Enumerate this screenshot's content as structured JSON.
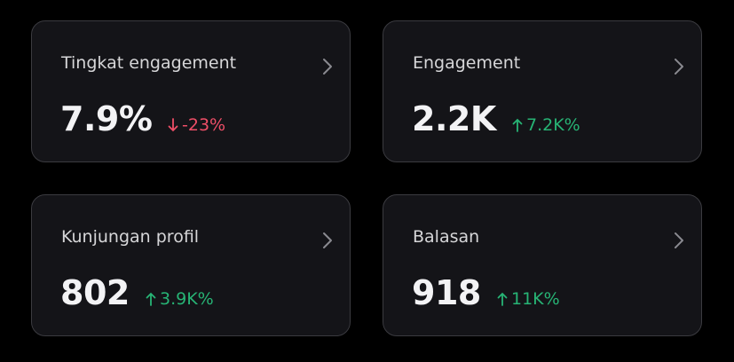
{
  "cards": [
    {
      "label": "Tingkat engagement",
      "value": "7.9%",
      "change": "-23%",
      "direction": "down"
    },
    {
      "label": "Engagement",
      "value": "2.2K",
      "change": "7.2K%",
      "direction": "up"
    },
    {
      "label": "Kunjungan profil",
      "value": "802",
      "change": "3.9K%",
      "direction": "up"
    },
    {
      "label": "Balasan",
      "value": "918",
      "change": "11K%",
      "direction": "up"
    }
  ]
}
